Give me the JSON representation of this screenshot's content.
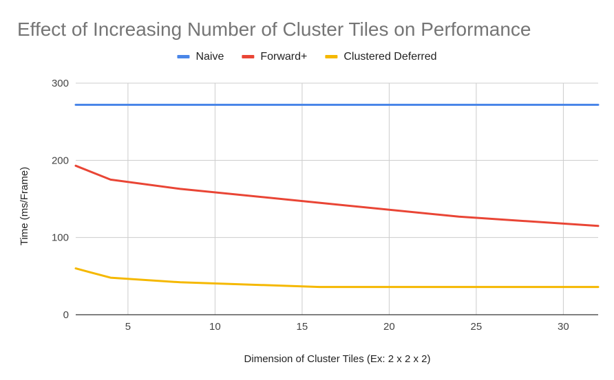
{
  "chart_data": {
    "type": "line",
    "title": "Effect of Increasing Number of Cluster Tiles on Performance",
    "xlabel": "Dimension of Cluster Tiles (Ex: 2 x 2 x 2)",
    "ylabel": "Time (ms/Frame)",
    "xlim": [
      2,
      32
    ],
    "ylim": [
      0,
      300
    ],
    "xticks": [
      5,
      10,
      15,
      20,
      25,
      30
    ],
    "yticks": [
      0,
      100,
      200,
      300
    ],
    "grid": true,
    "legend_position": "top",
    "series": [
      {
        "name": "Naive",
        "color": "#4a86e8",
        "x": [
          2,
          4,
          8,
          16,
          24,
          32
        ],
        "y": [
          272,
          272,
          272,
          272,
          272,
          272
        ]
      },
      {
        "name": "Forward+",
        "color": "#e94535",
        "x": [
          2,
          4,
          8,
          16,
          24,
          32
        ],
        "y": [
          193,
          175,
          163,
          145,
          127,
          115
        ]
      },
      {
        "name": "Clustered Deferred",
        "color": "#f5b800",
        "x": [
          2,
          4,
          8,
          16,
          24,
          32
        ],
        "y": [
          60,
          48,
          42,
          36,
          36,
          36
        ]
      }
    ]
  }
}
